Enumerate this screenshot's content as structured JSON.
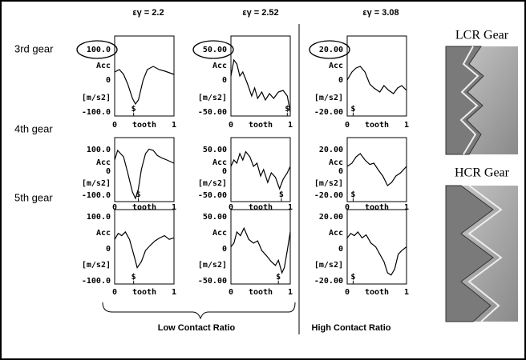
{
  "headers": [
    "εγ = 2.2",
    "εγ = 2.52",
    "εγ = 3.08"
  ],
  "rows": [
    {
      "label": "3rd gear",
      "panels": [
        {
          "max": "100.0",
          "min": "-100.0"
        },
        {
          "max": "50.00",
          "min": "-50.00"
        },
        {
          "max": "20.00",
          "min": "-20.00"
        }
      ]
    },
    {
      "label": "4th gear",
      "panels": [
        {
          "max": "100.0",
          "min": "-100.0"
        },
        {
          "max": "50.00",
          "min": "-50.00"
        },
        {
          "max": "20.00",
          "min": "-20.00"
        }
      ]
    },
    {
      "label": "5th gear",
      "panels": [
        {
          "max": "100.0",
          "min": "-100.0"
        },
        {
          "max": "50.00",
          "min": "-50.00"
        },
        {
          "max": "20.00",
          "min": "-20.00"
        }
      ]
    }
  ],
  "axis_labels": {
    "quantity": "Acc",
    "zero": "0",
    "unit": "[m/s2]",
    "x_start": "0",
    "x_label": "tooth",
    "x_end": "1",
    "marker": "$"
  },
  "groups": [
    "Low Contact Ratio",
    "High Contact Ratio"
  ],
  "gears": [
    "LCR Gear",
    "HCR Gear"
  ]
}
